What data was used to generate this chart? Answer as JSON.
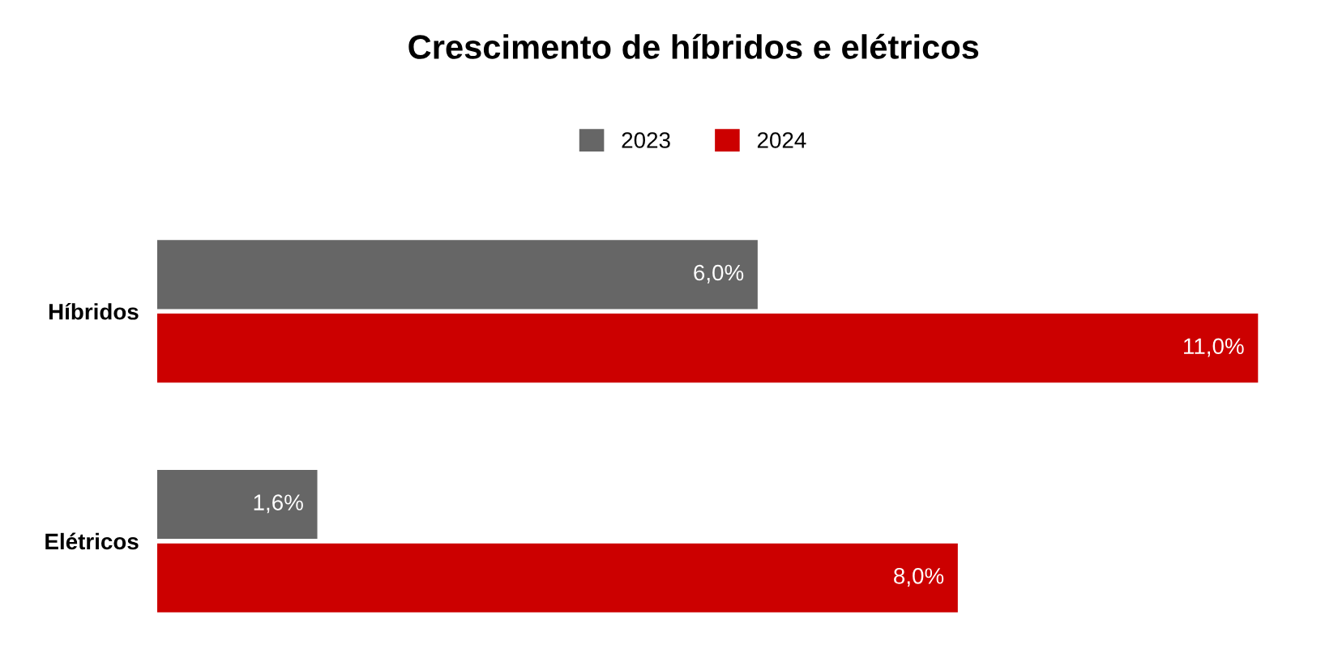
{
  "chart_data": {
    "type": "bar",
    "orientation": "horizontal",
    "title": "Crescimento de híbridos e elétricos",
    "categories": [
      "Híbridos",
      "Elétricos"
    ],
    "series": [
      {
        "name": "2023",
        "color": "#666666",
        "values": [
          6.0,
          1.6
        ],
        "value_labels": [
          "6,0%",
          "1,6%"
        ]
      },
      {
        "name": "2024",
        "color": "#cc0000",
        "values": [
          11.0,
          8.0
        ],
        "value_labels": [
          "11,0%",
          "8,0%"
        ]
      }
    ],
    "legend": "top",
    "grid": false
  }
}
